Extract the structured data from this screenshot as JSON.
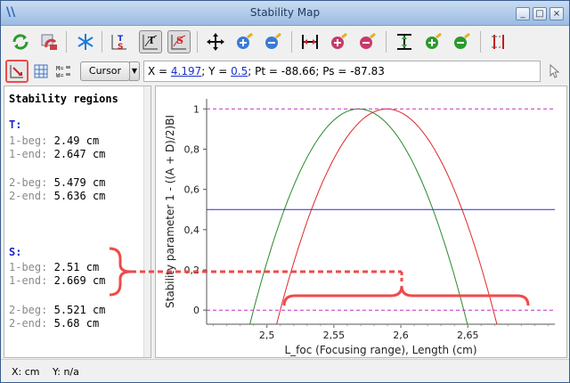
{
  "window": {
    "title": "Stability Map"
  },
  "readout": {
    "x_label": "X = ",
    "x_value": "4.197",
    "y_label": "; Y = ",
    "y_value": "0.5",
    "rest": "; Pt = -88.66; Ps = -87.83"
  },
  "cursor_button": {
    "label": "Cursor"
  },
  "left_panel": {
    "heading": "Stability regions",
    "groups": [
      {
        "label": "T:",
        "rows": [
          {
            "name": "1-beg:",
            "value": "2.49 cm"
          },
          {
            "name": "1-end:",
            "value": "2.647 cm"
          },
          {
            "name": "2-beg:",
            "value": "5.479 cm"
          },
          {
            "name": "2-end:",
            "value": "5.636 cm"
          }
        ]
      },
      {
        "label": "S:",
        "rows": [
          {
            "name": "1-beg:",
            "value": "2.51 cm"
          },
          {
            "name": "1-end:",
            "value": "2.669 cm"
          },
          {
            "name": "2-beg:",
            "value": "5.521 cm"
          },
          {
            "name": "2-end:",
            "value": "5.68 cm"
          }
        ]
      }
    ]
  },
  "chart_data": {
    "type": "line",
    "xlabel": "L_foc (Focusing range), Length (cm)",
    "ylabel": "Stability parameter 1 - ((A + D)/2)BI",
    "xlim": [
      2.455,
      2.715
    ],
    "ylim": [
      -0.07,
      1.05
    ],
    "x_ticks": [
      "2,5",
      "2,55",
      "2,6",
      "2,65"
    ],
    "x_tick_values": [
      2.5,
      2.55,
      2.6,
      2.65
    ],
    "y_ticks": [
      "0",
      "0,2",
      "0,4",
      "0,6",
      "0,8",
      "1"
    ],
    "y_tick_values": [
      0,
      0.2,
      0.4,
      0.6,
      0.8,
      1
    ],
    "series": [
      {
        "color": "#2a8a2a",
        "x": [
          2.49,
          2.5,
          2.52,
          2.54,
          2.5685,
          2.6,
          2.62,
          2.647
        ],
        "y": [
          0,
          0.236,
          0.626,
          0.887,
          1,
          0.867,
          0.626,
          0
        ]
      },
      {
        "color": "#e02828",
        "x": [
          2.51,
          2.52,
          2.54,
          2.56,
          2.5895,
          2.62,
          2.64,
          2.669
        ],
        "y": [
          0,
          0.233,
          0.616,
          0.869,
          1,
          0.863,
          0.627,
          0
        ]
      },
      {
        "color": "#2a2ae0",
        "x": [
          2.455,
          2.715
        ],
        "y": [
          0.5,
          0.5
        ]
      },
      {
        "color": "#c030c0",
        "dashed": true,
        "x": [
          2.455,
          2.715
        ],
        "y": [
          1,
          1
        ]
      },
      {
        "color": "#c030c0",
        "dashed": true,
        "x": [
          2.455,
          2.715
        ],
        "y": [
          0,
          0
        ]
      }
    ]
  },
  "status": {
    "x": "X: cm",
    "y": "Y: n/a"
  },
  "colors": {
    "annotation": "#f04a4a",
    "accent": "#1a24c8"
  }
}
